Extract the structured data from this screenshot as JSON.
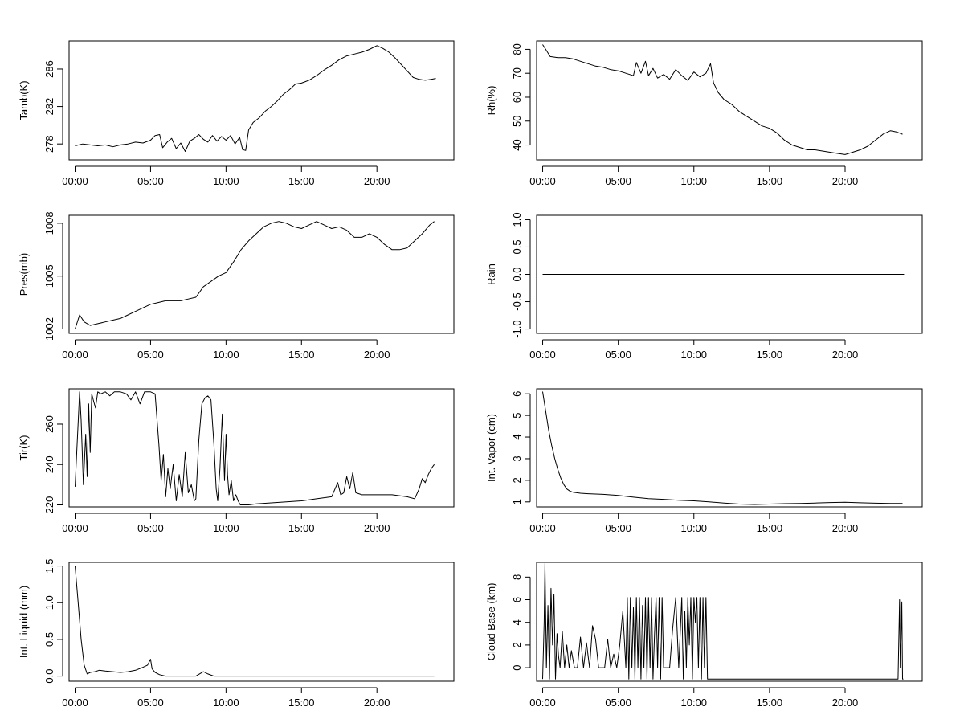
{
  "chart_data": [
    {
      "id": "tamb",
      "type": "line",
      "ylabel": "Tamb(K)",
      "xlabel": "",
      "x_ticks": [
        "00:00",
        "05:00",
        "10:00",
        "15:00",
        "20:00"
      ],
      "y_ticks": [
        278,
        282,
        286
      ],
      "xlim": [
        -0.4,
        25.1
      ],
      "ylim": [
        276.3,
        289.0
      ],
      "series": [
        {
          "x": [
            0.0,
            0.5,
            1.0,
            1.5,
            2.0,
            2.5,
            3.0,
            3.5,
            4.0,
            4.5,
            5.0,
            5.3,
            5.6,
            5.8,
            6.1,
            6.4,
            6.7,
            7.0,
            7.3,
            7.6,
            7.9,
            8.2,
            8.5,
            8.8,
            9.1,
            9.4,
            9.7,
            10.0,
            10.3,
            10.6,
            10.9,
            11.1,
            11.3,
            11.5,
            11.8,
            12.2,
            12.6,
            13.0,
            13.4,
            13.8,
            14.2,
            14.6,
            15.0,
            15.5,
            16.0,
            16.5,
            17.0,
            17.5,
            18.0,
            18.5,
            19.0,
            19.5,
            20.0,
            20.4,
            20.8,
            21.2,
            21.6,
            22.0,
            22.4,
            22.8,
            23.2,
            23.6,
            23.9
          ],
          "y": [
            277.8,
            278.0,
            277.9,
            277.8,
            277.9,
            277.7,
            277.9,
            278.0,
            278.2,
            278.1,
            278.4,
            278.9,
            279.0,
            277.6,
            278.2,
            278.6,
            277.5,
            278.1,
            277.2,
            278.3,
            278.6,
            279.0,
            278.5,
            278.2,
            278.9,
            278.3,
            278.8,
            278.4,
            278.9,
            278.0,
            278.7,
            277.4,
            277.3,
            279.5,
            280.3,
            280.8,
            281.5,
            282.0,
            282.6,
            283.3,
            283.8,
            284.4,
            284.5,
            284.8,
            285.3,
            285.9,
            286.4,
            287.0,
            287.4,
            287.6,
            287.8,
            288.1,
            288.5,
            288.2,
            287.8,
            287.2,
            286.5,
            285.8,
            285.1,
            284.9,
            284.8,
            284.9,
            285.0
          ]
        }
      ]
    },
    {
      "id": "rh",
      "type": "line",
      "ylabel": "Rh(%)",
      "xlabel": "",
      "x_ticks": [
        "00:00",
        "05:00",
        "10:00",
        "15:00",
        "20:00"
      ],
      "y_ticks": [
        40,
        50,
        60,
        70,
        80
      ],
      "xlim": [
        -0.4,
        25.1
      ],
      "ylim": [
        33.8,
        83.5
      ],
      "series": [
        {
          "x": [
            0.0,
            0.2,
            0.5,
            1.0,
            1.5,
            2.0,
            2.5,
            3.0,
            3.5,
            4.0,
            4.5,
            5.0,
            5.5,
            6.0,
            6.2,
            6.5,
            6.8,
            7.0,
            7.3,
            7.6,
            8.0,
            8.4,
            8.8,
            9.2,
            9.6,
            10.0,
            10.4,
            10.8,
            11.1,
            11.3,
            11.6,
            12.0,
            12.5,
            13.0,
            13.5,
            14.0,
            14.5,
            15.0,
            15.5,
            16.0,
            16.5,
            17.0,
            17.5,
            18.0,
            18.5,
            19.0,
            19.5,
            20.0,
            20.5,
            21.0,
            21.5,
            22.0,
            22.5,
            23.0,
            23.4,
            23.8
          ],
          "y": [
            82,
            80,
            77,
            76.5,
            76.5,
            76,
            75,
            74,
            73,
            72.5,
            71.5,
            71,
            70,
            69,
            74.5,
            70,
            75,
            69,
            72,
            68,
            69.5,
            67.5,
            71.5,
            69,
            67,
            70.5,
            68.5,
            70,
            74,
            66,
            62,
            59,
            57,
            54,
            52,
            50,
            48,
            47,
            45,
            42,
            40,
            39,
            38,
            38,
            37.5,
            37,
            36.5,
            36,
            37,
            38,
            39.5,
            42,
            44.5,
            46,
            45.5,
            44.5
          ]
        }
      ]
    },
    {
      "id": "pres",
      "type": "line",
      "ylabel": "Pres(mb)",
      "xlabel": "",
      "x_ticks": [
        "00:00",
        "05:00",
        "10:00",
        "15:00",
        "20:00"
      ],
      "y_ticks": [
        1002,
        1005,
        1008
      ],
      "xlim": [
        -0.4,
        25.1
      ],
      "ylim": [
        1001.75,
        1008.45
      ],
      "series": [
        {
          "x": [
            0.0,
            0.3,
            0.6,
            1.0,
            1.5,
            2.0,
            2.5,
            3.0,
            3.5,
            4.0,
            4.5,
            5.0,
            5.5,
            6.0,
            6.5,
            7.0,
            7.5,
            8.0,
            8.5,
            9.0,
            9.5,
            10.0,
            10.5,
            11.0,
            11.5,
            12.0,
            12.5,
            13.0,
            13.5,
            14.0,
            14.5,
            15.0,
            15.5,
            16.0,
            16.5,
            17.0,
            17.5,
            18.0,
            18.5,
            19.0,
            19.5,
            20.0,
            20.5,
            21.0,
            21.5,
            22.0,
            22.5,
            23.0,
            23.5,
            23.8
          ],
          "y": [
            1002.0,
            1002.8,
            1002.4,
            1002.2,
            1002.3,
            1002.4,
            1002.5,
            1002.6,
            1002.8,
            1003.0,
            1003.2,
            1003.4,
            1003.5,
            1003.6,
            1003.6,
            1003.6,
            1003.7,
            1003.8,
            1004.4,
            1004.7,
            1005.0,
            1005.2,
            1005.8,
            1006.5,
            1007.0,
            1007.4,
            1007.8,
            1008.0,
            1008.1,
            1008.0,
            1007.8,
            1007.7,
            1007.9,
            1008.1,
            1007.9,
            1007.7,
            1007.8,
            1007.6,
            1007.2,
            1007.2,
            1007.4,
            1007.2,
            1006.8,
            1006.5,
            1006.5,
            1006.6,
            1007.0,
            1007.4,
            1007.9,
            1008.1
          ]
        }
      ]
    },
    {
      "id": "rain",
      "type": "line",
      "ylabel": "Rain",
      "xlabel": "",
      "x_ticks": [
        "00:00",
        "05:00",
        "10:00",
        "15:00",
        "20:00"
      ],
      "y_ticks": [
        "-1.0",
        "-0.5",
        "0.0",
        "0.5",
        "1.0"
      ],
      "xlim": [
        -0.4,
        25.1
      ],
      "ylim": [
        -1.08,
        1.08
      ],
      "series": [
        {
          "x": [
            0.0,
            23.9
          ],
          "y": [
            0,
            0
          ]
        }
      ]
    },
    {
      "id": "tir",
      "type": "line",
      "ylabel": "Tir(K)",
      "xlabel": "",
      "x_ticks": [
        "00:00",
        "05:00",
        "10:00",
        "15:00",
        "20:00"
      ],
      "y_ticks": [
        220,
        240,
        260
      ],
      "xlim": [
        -0.4,
        25.1
      ],
      "ylim": [
        219.0,
        277.5
      ],
      "series": [
        {
          "x": [
            0.0,
            0.3,
            0.4,
            0.55,
            0.7,
            0.8,
            0.9,
            1.0,
            1.1,
            1.2,
            1.35,
            1.5,
            1.7,
            2.0,
            2.3,
            2.6,
            3.0,
            3.4,
            3.7,
            4.0,
            4.3,
            4.6,
            5.0,
            5.3,
            5.45,
            5.55,
            5.7,
            5.85,
            6.0,
            6.15,
            6.3,
            6.5,
            6.7,
            6.9,
            7.1,
            7.3,
            7.5,
            7.7,
            7.9,
            8.0,
            8.2,
            8.4,
            8.6,
            8.8,
            9.0,
            9.2,
            9.35,
            9.45,
            9.6,
            9.75,
            9.9,
            10.0,
            10.1,
            10.2,
            10.35,
            10.5,
            10.65,
            10.8,
            10.95,
            11.1,
            11.5,
            12.0,
            13.0,
            14.0,
            15.0,
            16.0,
            17.0,
            17.4,
            17.6,
            17.8,
            18.0,
            18.2,
            18.4,
            18.6,
            19.0,
            20.0,
            21.0,
            22.0,
            22.5,
            22.8,
            23.0,
            23.2,
            23.4,
            23.6,
            23.8
          ],
          "y": [
            229,
            276,
            262,
            230,
            255,
            234,
            270,
            246,
            275,
            272,
            268,
            276,
            275,
            276,
            274,
            276,
            276,
            275,
            272,
            276,
            270,
            276,
            276,
            275,
            260,
            250,
            232,
            245,
            224,
            238,
            228,
            240,
            222,
            235,
            224,
            246,
            226,
            230,
            222,
            223,
            252,
            270,
            273,
            274,
            272,
            250,
            228,
            222,
            238,
            265,
            232,
            255,
            235,
            225,
            232,
            222,
            225,
            222,
            220,
            220,
            220,
            220.5,
            221,
            221.5,
            222,
            223,
            224,
            231,
            225,
            226,
            234,
            228,
            236,
            226,
            225,
            225,
            225,
            224,
            223,
            228,
            233,
            231,
            235,
            238,
            240
          ]
        }
      ]
    },
    {
      "id": "int_vapor",
      "type": "line",
      "ylabel": "Int. Vapor (cm)",
      "xlabel": "",
      "x_ticks": [
        "00:00",
        "05:00",
        "10:00",
        "15:00",
        "20:00"
      ],
      "y_ticks": [
        1,
        2,
        3,
        4,
        5,
        6
      ],
      "xlim": [
        -0.4,
        25.1
      ],
      "ylim": [
        0.77,
        6.23
      ],
      "series": [
        {
          "x": [
            0.0,
            0.2,
            0.4,
            0.6,
            0.8,
            1.0,
            1.2,
            1.4,
            1.6,
            1.8,
            2.0,
            2.5,
            3.0,
            4.0,
            5.0,
            6.0,
            7.0,
            8.0,
            9.0,
            10.0,
            11.0,
            12.0,
            13.0,
            14.0,
            15.0,
            16.0,
            17.0,
            18.0,
            19.0,
            20.0,
            21.0,
            22.0,
            23.0,
            23.8
          ],
          "y": [
            6.1,
            5.2,
            4.3,
            3.6,
            3.0,
            2.5,
            2.1,
            1.8,
            1.6,
            1.5,
            1.45,
            1.4,
            1.38,
            1.35,
            1.3,
            1.22,
            1.15,
            1.12,
            1.08,
            1.05,
            1.0,
            0.95,
            0.9,
            0.88,
            0.9,
            0.92,
            0.93,
            0.95,
            0.97,
            0.98,
            0.96,
            0.94,
            0.93,
            0.93
          ]
        }
      ]
    },
    {
      "id": "int_liquid",
      "type": "line",
      "ylabel": "Int. Liquid (mm)",
      "xlabel": "",
      "x_ticks": [
        "00:00",
        "05:00",
        "10:00",
        "15:00",
        "20:00"
      ],
      "y_ticks": [
        "0.0",
        "0.5",
        "1.0",
        "1.5"
      ],
      "xlim": [
        -0.4,
        25.1
      ],
      "ylim": [
        -0.07,
        1.55
      ],
      "series": [
        {
          "x": [
            0.0,
            0.2,
            0.4,
            0.6,
            0.8,
            1.0,
            1.3,
            1.6,
            2.0,
            2.5,
            3.0,
            3.5,
            4.0,
            4.5,
            4.8,
            5.0,
            5.1,
            5.3,
            5.6,
            6.0,
            7.0,
            8.0,
            8.5,
            8.8,
            9.2,
            10.0,
            12.0,
            16.0,
            20.0,
            23.8
          ],
          "y": [
            1.5,
            1.0,
            0.5,
            0.15,
            0.03,
            0.05,
            0.06,
            0.08,
            0.07,
            0.06,
            0.05,
            0.06,
            0.08,
            0.12,
            0.15,
            0.23,
            0.1,
            0.05,
            0.02,
            0.0,
            0.0,
            0.0,
            0.06,
            0.03,
            0.0,
            0.0,
            0.0,
            0.0,
            0.0,
            0.0
          ]
        }
      ]
    },
    {
      "id": "cloud_base",
      "type": "line",
      "ylabel": "Cloud Base (km)",
      "xlabel": "",
      "x_ticks": [
        "00:00",
        "05:00",
        "10:00",
        "15:00",
        "20:00"
      ],
      "y_ticks": [
        0,
        2,
        4,
        6,
        8
      ],
      "xlim": [
        -0.4,
        25.1
      ],
      "ylim": [
        -1.2,
        9.3
      ],
      "series": [
        {
          "x": [
            0.0,
            0.1,
            0.15,
            0.25,
            0.35,
            0.45,
            0.55,
            0.65,
            0.75,
            0.85,
            0.95,
            1.05,
            1.15,
            1.3,
            1.45,
            1.6,
            1.75,
            1.9,
            2.1,
            2.3,
            2.5,
            2.7,
            2.9,
            3.1,
            3.3,
            3.5,
            3.7,
            3.9,
            4.1,
            4.3,
            4.5,
            4.7,
            4.9,
            5.1,
            5.3,
            5.5,
            5.6,
            5.7,
            5.8,
            5.9,
            6.0,
            6.1,
            6.2,
            6.3,
            6.4,
            6.5,
            6.6,
            6.7,
            6.8,
            6.9,
            7.0,
            7.1,
            7.2,
            7.3,
            7.4,
            7.5,
            7.6,
            7.7,
            7.8,
            7.9,
            8.0,
            8.2,
            8.4,
            8.6,
            8.8,
            9.0,
            9.2,
            9.3,
            9.4,
            9.5,
            9.6,
            9.7,
            9.8,
            9.9,
            10.0,
            10.1,
            10.2,
            10.3,
            10.4,
            10.5,
            10.6,
            10.7,
            10.8,
            10.9,
            11.0,
            12.0,
            14.0,
            16.0,
            18.0,
            20.0,
            22.0,
            23.5,
            23.6,
            23.65,
            23.7,
            23.75,
            23.8,
            23.85
          ],
          "y": [
            -1,
            4,
            9.2,
            0,
            5.5,
            -1,
            7.0,
            2.0,
            6.5,
            -1,
            3.0,
            1.0,
            0.0,
            3.2,
            0.0,
            2.0,
            0.0,
            1.5,
            0.0,
            0.0,
            2.7,
            0.0,
            2.2,
            0.0,
            3.7,
            2.5,
            0.0,
            0.0,
            0.0,
            2.5,
            0.0,
            1.2,
            0.0,
            2.0,
            5.0,
            0.0,
            6.2,
            -1,
            6.2,
            0.0,
            5.3,
            -1,
            6.2,
            0.0,
            6.2,
            -1,
            5.5,
            0.0,
            6.2,
            -1,
            6.2,
            0.0,
            6.2,
            -1,
            3.0,
            6.2,
            0.0,
            6.2,
            -1,
            6.2,
            0.0,
            0.0,
            0.0,
            3.5,
            6.2,
            0.0,
            6.2,
            -1,
            5.0,
            0.0,
            6.2,
            2.0,
            6.2,
            -1,
            6.2,
            4.0,
            6.2,
            0.0,
            6.2,
            -1,
            6.2,
            0.0,
            6.2,
            -1,
            -1,
            -1,
            -1,
            -1,
            -1,
            -1,
            -1,
            -1,
            6.0,
            0.0,
            2.5,
            5.8,
            -1,
            -1
          ]
        }
      ]
    }
  ]
}
